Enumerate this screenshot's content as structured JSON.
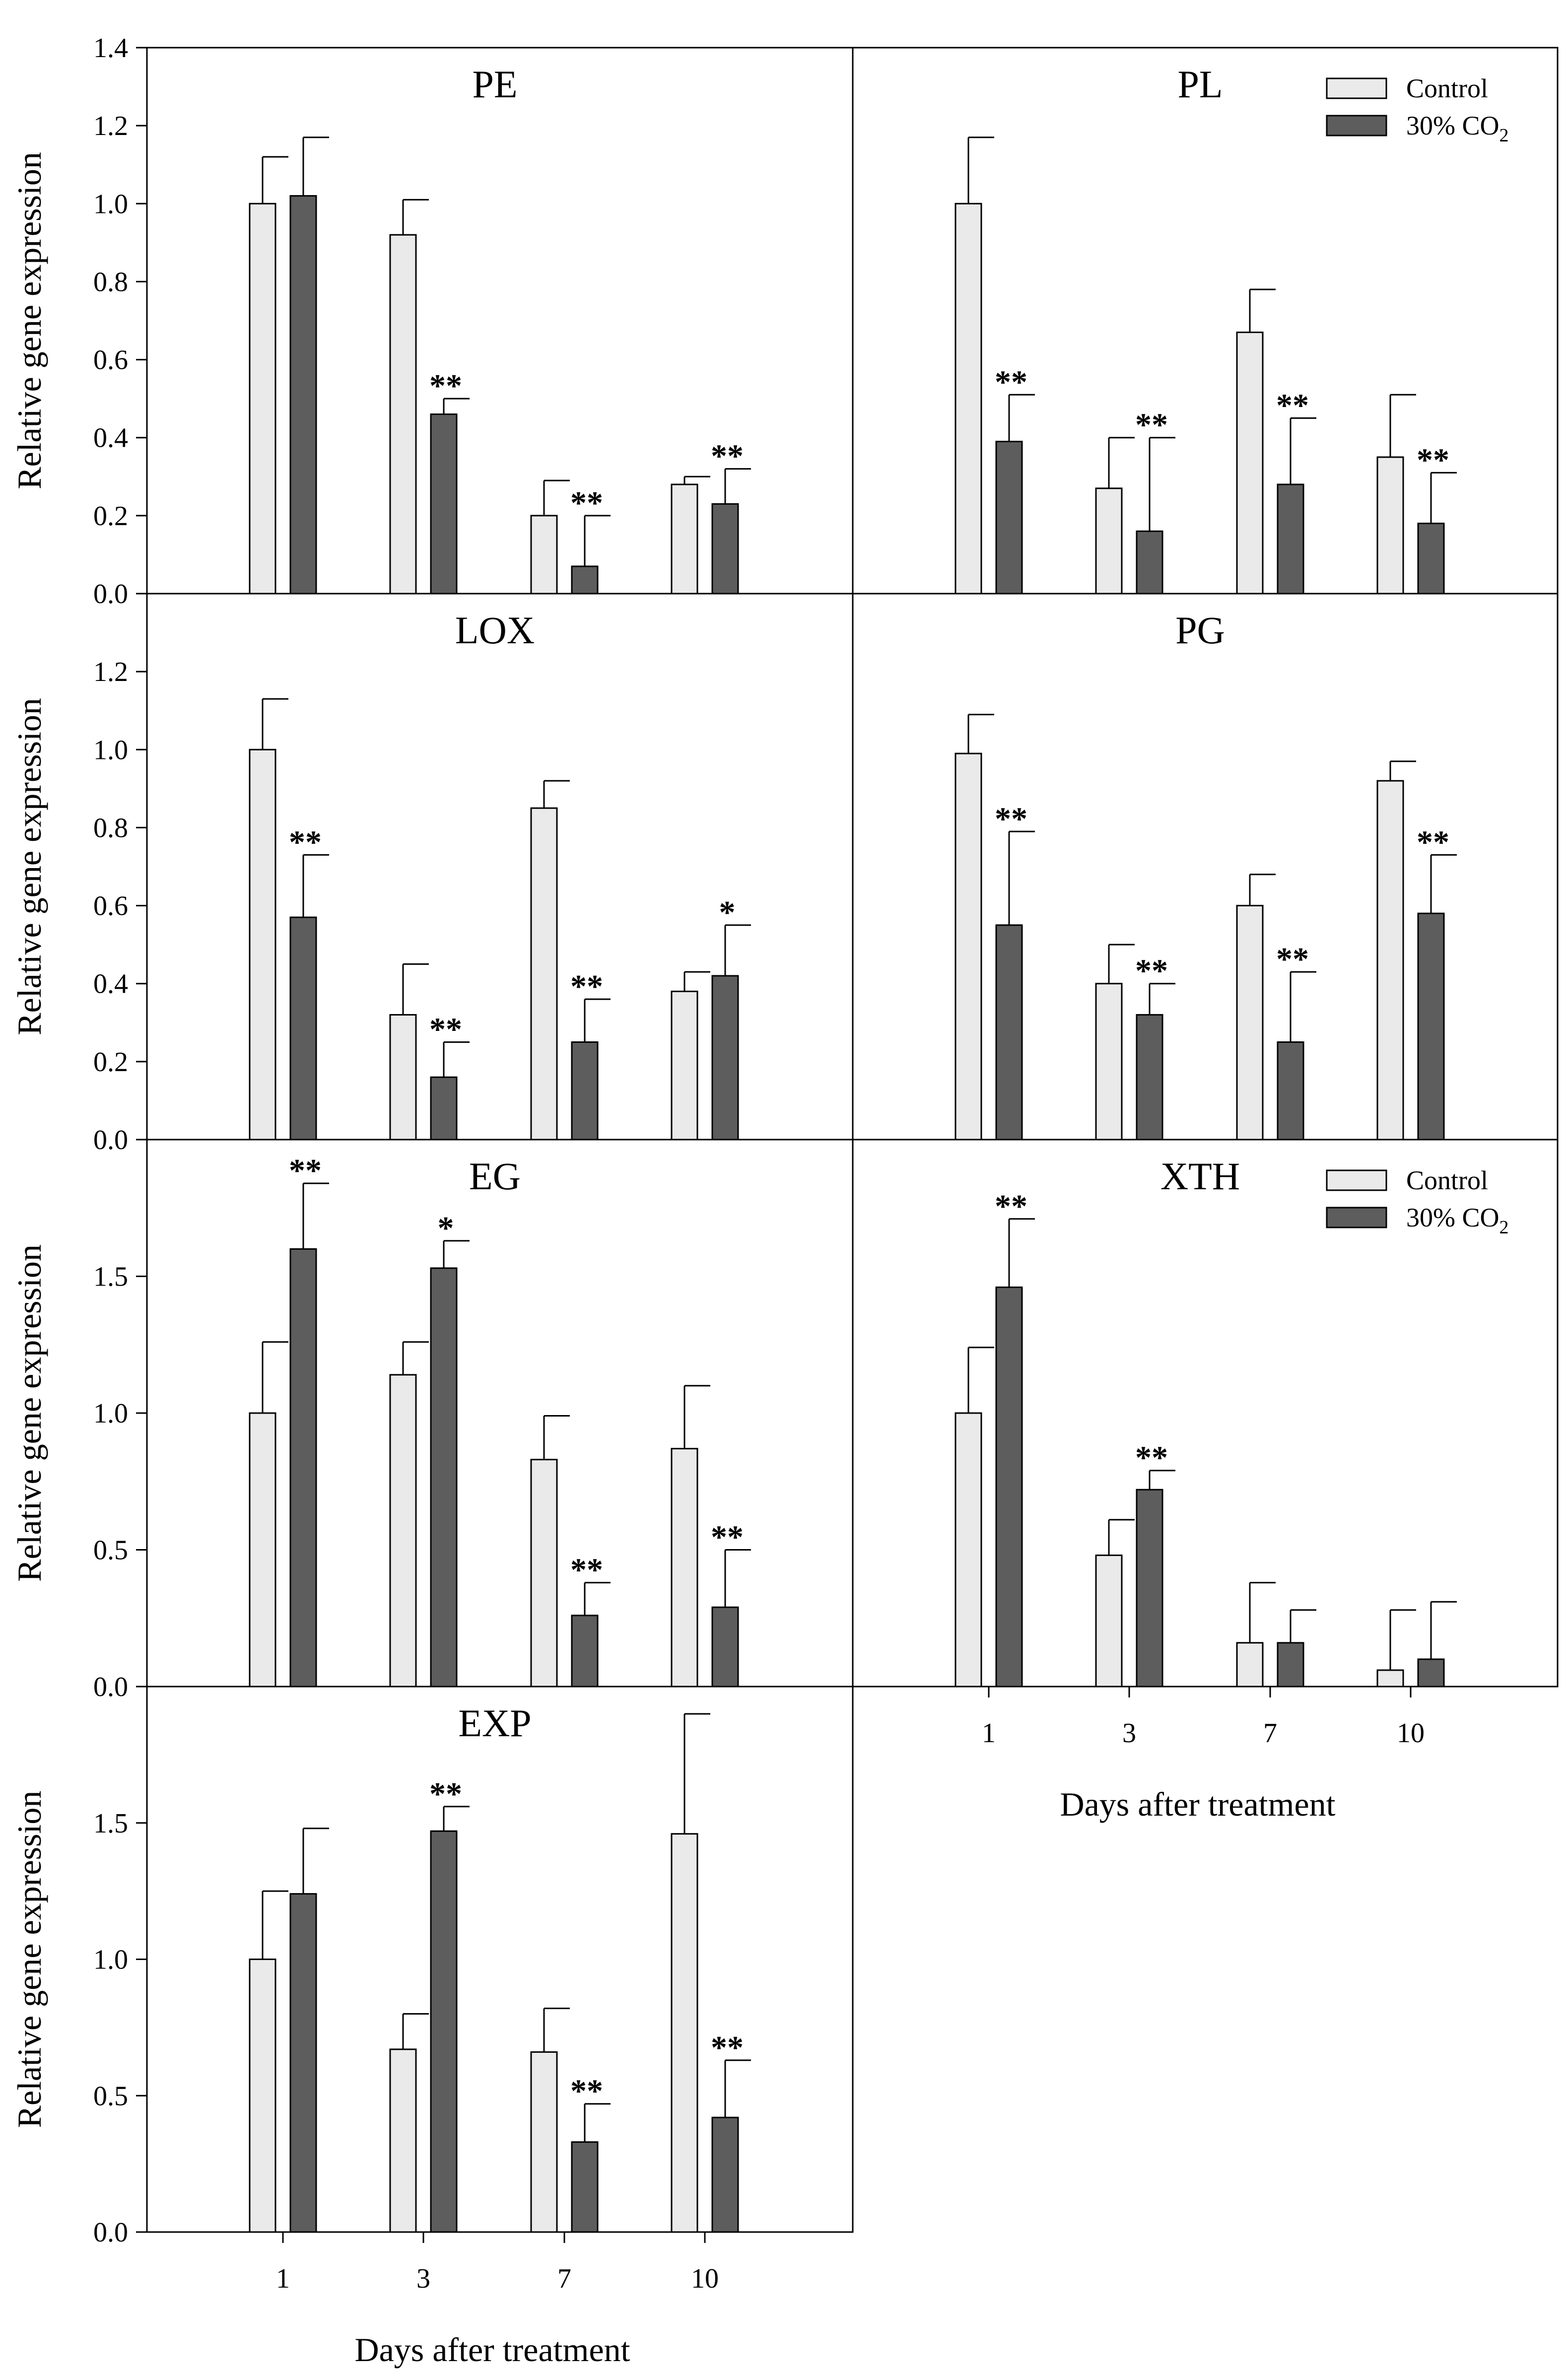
{
  "colors": {
    "control": "#eaeaea",
    "co2": "#5d5d5d",
    "stroke": "#000000"
  },
  "legend": {
    "control_label": "Control",
    "co2_label_main": "30% CO",
    "co2_label_sub": "2"
  },
  "chart_data": [
    {
      "type": "bar",
      "title": "PE",
      "categories": [
        "1",
        "3",
        "7",
        "10"
      ],
      "xlabel": "",
      "ylabel": "Relative gene expression",
      "ylim": [
        0,
        1.4
      ],
      "yticks": [
        "0.0",
        "0.2",
        "0.4",
        "0.6",
        "0.8",
        "1.0",
        "1.2",
        "1.4"
      ],
      "series": [
        {
          "name": "Control",
          "values": [
            1.0,
            0.92,
            0.2,
            0.28
          ],
          "errors": [
            0.12,
            0.09,
            0.09,
            0.02
          ],
          "sig": [
            "",
            "",
            "",
            ""
          ]
        },
        {
          "name": "30% CO2",
          "values": [
            1.02,
            0.46,
            0.07,
            0.23
          ],
          "errors": [
            0.15,
            0.04,
            0.13,
            0.09
          ],
          "sig": [
            "",
            "**",
            "**",
            "**"
          ]
        }
      ],
      "legend": false
    },
    {
      "type": "bar",
      "title": "PL",
      "categories": [
        "1",
        "3",
        "7",
        "10"
      ],
      "xlabel": "",
      "ylabel": "",
      "ylim": [
        0,
        1.4
      ],
      "yticks": [],
      "series": [
        {
          "name": "Control",
          "values": [
            1.0,
            0.27,
            0.67,
            0.35
          ],
          "errors": [
            0.17,
            0.13,
            0.11,
            0.16
          ],
          "sig": [
            "",
            "",
            "",
            ""
          ]
        },
        {
          "name": "30% CO2",
          "values": [
            0.39,
            0.16,
            0.28,
            0.18
          ],
          "errors": [
            0.12,
            0.24,
            0.17,
            0.13
          ],
          "sig": [
            "**",
            "**",
            "**",
            "**"
          ]
        }
      ],
      "legend": true
    },
    {
      "type": "bar",
      "title": "LOX",
      "categories": [
        "1",
        "3",
        "7",
        "10"
      ],
      "xlabel": "",
      "ylabel": "Relative gene expression",
      "ylim": [
        0,
        1.4
      ],
      "yticks": [
        "0.0",
        "0.2",
        "0.4",
        "0.6",
        "0.8",
        "1.0",
        "1.2"
      ],
      "series": [
        {
          "name": "Control",
          "values": [
            1.0,
            0.32,
            0.85,
            0.38
          ],
          "errors": [
            0.13,
            0.13,
            0.07,
            0.05
          ],
          "sig": [
            "",
            "",
            "",
            ""
          ]
        },
        {
          "name": "30% CO2",
          "values": [
            0.57,
            0.16,
            0.25,
            0.42
          ],
          "errors": [
            0.16,
            0.09,
            0.11,
            0.13
          ],
          "sig": [
            "**",
            "**",
            "**",
            "*"
          ]
        }
      ],
      "legend": false
    },
    {
      "type": "bar",
      "title": "PG",
      "categories": [
        "1",
        "3",
        "7",
        "10"
      ],
      "xlabel": "",
      "ylabel": "",
      "ylim": [
        0,
        1.4
      ],
      "yticks": [],
      "series": [
        {
          "name": "Control",
          "values": [
            0.99,
            0.4,
            0.6,
            0.92
          ],
          "errors": [
            0.1,
            0.1,
            0.08,
            0.05
          ],
          "sig": [
            "",
            "",
            "",
            ""
          ]
        },
        {
          "name": "30% CO2",
          "values": [
            0.55,
            0.32,
            0.25,
            0.58
          ],
          "errors": [
            0.24,
            0.08,
            0.18,
            0.15
          ],
          "sig": [
            "**",
            "**",
            "**",
            "**"
          ]
        }
      ],
      "legend": false
    },
    {
      "type": "bar",
      "title": "EG",
      "categories": [
        "1",
        "3",
        "7",
        "10"
      ],
      "xlabel": "",
      "ylabel": "Relative gene expression",
      "ylim": [
        0,
        2.0
      ],
      "yticks": [
        "0.0",
        "0.5",
        "1.0",
        "1.5"
      ],
      "series": [
        {
          "name": "Control",
          "values": [
            1.0,
            1.14,
            0.83,
            0.87
          ],
          "errors": [
            0.26,
            0.12,
            0.16,
            0.23
          ],
          "sig": [
            "",
            "",
            "",
            ""
          ]
        },
        {
          "name": "30% CO2",
          "values": [
            1.6,
            1.53,
            0.26,
            0.29
          ],
          "errors": [
            0.24,
            0.1,
            0.12,
            0.21
          ],
          "sig": [
            "**",
            "*",
            "**",
            "**"
          ]
        }
      ],
      "legend": false
    },
    {
      "type": "bar",
      "title": "XTH",
      "categories": [
        "1",
        "3",
        "7",
        "10"
      ],
      "xlabel": "Days after treatment",
      "ylabel": "",
      "ylim": [
        0,
        2.0
      ],
      "yticks": [],
      "series": [
        {
          "name": "Control",
          "values": [
            1.0,
            0.48,
            0.16,
            0.06
          ],
          "errors": [
            0.24,
            0.13,
            0.22,
            0.22
          ],
          "sig": [
            "",
            "",
            "",
            ""
          ]
        },
        {
          "name": "30% CO2",
          "values": [
            1.46,
            0.72,
            0.16,
            0.1
          ],
          "errors": [
            0.25,
            0.07,
            0.12,
            0.21
          ],
          "sig": [
            "**",
            "**",
            "",
            ""
          ]
        }
      ],
      "legend": true
    },
    {
      "type": "bar",
      "title": "EXP",
      "categories": [
        "1",
        "3",
        "7",
        "10"
      ],
      "xlabel": "Days after treatment",
      "ylabel": "Relative gene expression",
      "ylim": [
        0,
        2.0
      ],
      "yticks": [
        "0.0",
        "0.5",
        "1.0",
        "1.5"
      ],
      "series": [
        {
          "name": "Control",
          "values": [
            1.0,
            0.67,
            0.66,
            1.46
          ],
          "errors": [
            0.25,
            0.13,
            0.16,
            0.44
          ],
          "sig": [
            "",
            "",
            "",
            ""
          ]
        },
        {
          "name": "30% CO2",
          "values": [
            1.24,
            1.47,
            0.33,
            0.42
          ],
          "errors": [
            0.24,
            0.09,
            0.14,
            0.21
          ],
          "sig": [
            "",
            "**",
            "**",
            "**"
          ]
        }
      ],
      "legend": false
    }
  ]
}
